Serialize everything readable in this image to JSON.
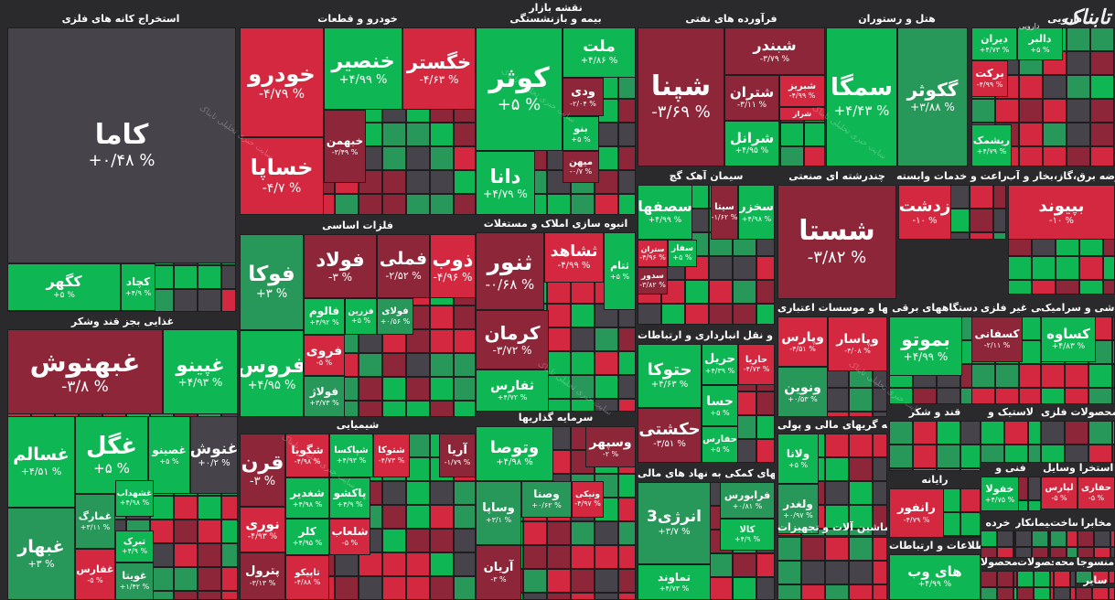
{
  "map_title": "نقشه بازار",
  "brand": {
    "logo": "تابناک",
    "sub": "دارویی"
  },
  "watermark": "سایت خبری تحلیلی تابناک",
  "colors": {
    "bg": "#2a2a2d",
    "neutral": "#46434b",
    "pos1": "#27985a",
    "pos2": "#0fb654",
    "neg1": "#8d2639",
    "neg2": "#d3283f"
  },
  "chart_data": {
    "type": "treemap",
    "sectors": [
      {
        "name": "استخراج کانه های فلزی",
        "stocks": [
          {
            "name": "کاما",
            "change": "+۰/۴۸ %"
          },
          {
            "name": "کگهر",
            "change": "+۵ %"
          },
          {
            "name": "کچاد",
            "change": "+۴/۹ %"
          }
        ]
      },
      {
        "name": "غذایی بجز قند وشکر",
        "stocks": [
          {
            "name": "غبهنوش",
            "change": "-۳/۸ %"
          },
          {
            "name": "غپینو",
            "change": "+۴/۹۳ %"
          },
          {
            "name": "غگل",
            "change": "+۵ %"
          },
          {
            "name": "غسالم",
            "change": "+۴/۵۱ %"
          },
          {
            "name": "غصینو",
            "change": "+۵ %"
          },
          {
            "name": "غنوش",
            "change": "+۰/۲ %"
          },
          {
            "name": "غمارگ",
            "change": "+۳/۱۱ %"
          },
          {
            "name": "غشهداب",
            "change": "+۴/۹۸ %"
          },
          {
            "name": "غبهار",
            "change": "+۳ %"
          },
          {
            "name": "تبرک",
            "change": "+۴/۹ %"
          },
          {
            "name": "غفارس",
            "change": "-۵ %"
          },
          {
            "name": "غویتا",
            "change": "+۱/۴۲ %"
          }
        ]
      },
      {
        "name": "خودرو و قطعات",
        "stocks": [
          {
            "name": "خودرو",
            "change": "-۴/۷۹ %"
          },
          {
            "name": "خنصیر",
            "change": "+۴/۹۹ %"
          },
          {
            "name": "خگستر",
            "change": "-۴/۶۳ %"
          },
          {
            "name": "خساپا",
            "change": "-۴/۷ %"
          },
          {
            "name": "خبهمن",
            "change": "-۳/۴۹ %"
          }
        ]
      },
      {
        "name": "فلزات اساسی",
        "stocks": [
          {
            "name": "فوکا",
            "change": "+۳ %"
          },
          {
            "name": "فولاد",
            "change": "-۳ %"
          },
          {
            "name": "فملی",
            "change": "-۲/۵۲ %"
          },
          {
            "name": "ذوب",
            "change": "-۴/۹۶ %"
          },
          {
            "name": "فالوم",
            "change": "+۴/۹۲ %"
          },
          {
            "name": "فزرین",
            "change": "+۵ %"
          },
          {
            "name": "فولای",
            "change": "+۰/۵۶ %"
          },
          {
            "name": "فروی",
            "change": "-۵ %"
          },
          {
            "name": "فروس",
            "change": "+۴/۹۵ %"
          },
          {
            "name": "فولاژ",
            "change": "+۳/۷۳ %"
          }
        ]
      },
      {
        "name": "شیمیایی",
        "stocks": [
          {
            "name": "قرن",
            "change": "-۳ %"
          },
          {
            "name": "شگویا",
            "change": "-۴/۹۸ %"
          },
          {
            "name": "شپاکسا",
            "change": "+۴/۹۳ %"
          },
          {
            "name": "شتوکا",
            "change": "-۴/۷۳ %"
          },
          {
            "name": "آریا",
            "change": "-۱/۷۹ %"
          },
          {
            "name": "پاکشو",
            "change": "+۴/۹ %"
          },
          {
            "name": "شغدیر",
            "change": "+۴/۹۸ %"
          },
          {
            "name": "شلعاب",
            "change": "-۵ %"
          },
          {
            "name": "نوری",
            "change": "-۴/۹۳ %"
          },
          {
            "name": "کلر",
            "change": "+۴/۹۵ %"
          },
          {
            "name": "پترول",
            "change": "-۳/۱۳ %"
          },
          {
            "name": "تاپیکو",
            "change": "-۴/۸۸ %"
          }
        ]
      },
      {
        "name": "بیمه و بازنشستگی",
        "stocks": [
          {
            "name": "کوثر",
            "change": "+۵ %"
          },
          {
            "name": "ملت",
            "change": "+۴/۸۶ %"
          },
          {
            "name": "ودی",
            "change": "-۲/۰۴ %"
          },
          {
            "name": "بنو",
            "change": "+۵ %"
          },
          {
            "name": "دانا",
            "change": "+۴/۷۹ %"
          },
          {
            "name": "میهن",
            "change": "-۰/۷ %"
          }
        ]
      },
      {
        "name": "انبوه سازی املاک و مستغلات",
        "stocks": [
          {
            "name": "ثنور",
            "change": "-۰/۶۸ %"
          },
          {
            "name": "ثشاهد",
            "change": "-۴/۹۹ %"
          },
          {
            "name": "ثتام",
            "change": "+۵ %"
          },
          {
            "name": "کرمان",
            "change": "-۳/۷۲ %"
          },
          {
            "name": "ثفارس",
            "change": "+۴/۷۲ %"
          }
        ]
      },
      {
        "name": "سرمایه گذاریها",
        "stocks": [
          {
            "name": "وتوصا",
            "change": "+۴/۹۸ %"
          },
          {
            "name": "وسپهر",
            "change": "-۲ %"
          },
          {
            "name": "وصنا",
            "change": "+۰/۶۲ %"
          },
          {
            "name": "ونیکی",
            "change": "-۴/۹۷ %"
          },
          {
            "name": "وساپا",
            "change": "+۳/۱ %"
          },
          {
            "name": "آریان",
            "change": "-۳ %"
          }
        ]
      },
      {
        "name": "فرآورده های نفتی",
        "stocks": [
          {
            "name": "شپنا",
            "change": "-۳/۶۹ %"
          },
          {
            "name": "شبندر",
            "change": "-۳/۷۹ %"
          },
          {
            "name": "شتران",
            "change": "-۳/۱۱ %"
          },
          {
            "name": "شبریز",
            "change": "-۴/۹۹ %"
          },
          {
            "name": "شراز",
            "change": "-۵ %"
          },
          {
            "name": "شرانل",
            "change": "+۴/۹۵ %"
          }
        ]
      },
      {
        "name": "سیمان آهک گچ",
        "stocks": [
          {
            "name": "سصفها",
            "change": "+۴/۹۹ %"
          },
          {
            "name": "سیتا",
            "change": "-۱/۶۲ %"
          },
          {
            "name": "سخزر",
            "change": "+۴/۹۸ %"
          },
          {
            "name": "سفار",
            "change": "+۵ %"
          },
          {
            "name": "ستران",
            "change": "-۴/۹۶ %"
          },
          {
            "name": "سدور",
            "change": "-۳/۸۲ %"
          }
        ]
      },
      {
        "name": "حمل و نقل انبارداری و ارتباطات",
        "stocks": [
          {
            "name": "حتوکا",
            "change": "+۴/۶۳ %"
          },
          {
            "name": "حریل",
            "change": "+۴/۳۹ %"
          },
          {
            "name": "حاریا",
            "change": "-۴/۷۳ %"
          },
          {
            "name": "حسا",
            "change": "+۵ %"
          },
          {
            "name": "حکشتی",
            "change": "-۳/۵۱ %"
          },
          {
            "name": "حفارس",
            "change": "+۵ %"
          }
        ]
      },
      {
        "name": "فعالیتهای کمکی به نهاد های مالی",
        "stocks": [
          {
            "name": "انرژی3",
            "change": "+۳/۷ %"
          },
          {
            "name": "فرابورس",
            "change": "+۰/۸۱ %"
          },
          {
            "name": "کالا",
            "change": "+۴/۹ %"
          },
          {
            "name": "تماوند",
            "change": "+۴/۷۳ %"
          }
        ]
      },
      {
        "name": "هتل و رستوران",
        "stocks": [
          {
            "name": "سمگا",
            "change": "+۴/۴۳ %"
          },
          {
            "name": "گکوثر",
            "change": "+۳/۸۸ %"
          }
        ]
      },
      {
        "name": "چندرشته ای صنعتی",
        "stocks": [
          {
            "name": "شستا",
            "change": "-۳/۸۲ %"
          }
        ]
      },
      {
        "name": "بانکها و موسسات اعتباری",
        "stocks": [
          {
            "name": "وپارس",
            "change": "-۴/۵۱ %"
          },
          {
            "name": "وپاسار",
            "change": "-۴/۰۸ %"
          },
          {
            "name": "ونوین",
            "change": "+۰/۵۳ %"
          }
        ]
      },
      {
        "name": "واسطه گریهای مالی و پولی",
        "stocks": [
          {
            "name": "ولانا",
            "change": "+۵ %"
          },
          {
            "name": "ولغدر",
            "change": "+۰/۹۷ %"
          }
        ]
      },
      {
        "name": "ماشین آلات و تجهیزات",
        "stocks": []
      },
      {
        "name": "زراعت و خدمات وابسته",
        "stocks": [
          {
            "name": "زدشت",
            "change": "-۱۰ %"
          }
        ]
      },
      {
        "name": "عرضه برق،گاز،بخار و آب",
        "stocks": [
          {
            "name": "بپیوند",
            "change": "-۱۰ %"
          }
        ]
      },
      {
        "name": "دارویی",
        "stocks": [
          {
            "name": "دیران",
            "change": "+۴/۷۳ %"
          },
          {
            "name": "برکت",
            "change": "-۴/۹۹ %"
          },
          {
            "name": "ریشمک",
            "change": "+۴/۷۹ %"
          },
          {
            "name": "دالبر",
            "change": "+۵ %"
          }
        ]
      },
      {
        "name": "دستگاههای برقی",
        "stocks": [
          {
            "name": "بموتو",
            "change": "+۴/۹۹ %"
          }
        ]
      },
      {
        "name": "کانی غیر فلزی",
        "stocks": [
          {
            "name": "کسفانی",
            "change": "-۲/۱۱ %"
          }
        ]
      },
      {
        "name": "کاشی و سرامیک",
        "stocks": [
          {
            "name": "کساوه",
            "change": "+۴/۸۳ %"
          }
        ]
      },
      {
        "name": "قند و شکر",
        "stocks": []
      },
      {
        "name": "لاستیک و",
        "stocks": []
      },
      {
        "name": "محصولات فلزی",
        "stocks": []
      },
      {
        "name": "رایانه",
        "stocks": [
          {
            "name": "رانفور",
            "change": "-۴/۷۹ %"
          }
        ]
      },
      {
        "name": "فنی و",
        "stocks": [
          {
            "name": "خفولا",
            "change": "+۴/۷۵ %"
          }
        ]
      },
      {
        "name": "وسایل",
        "stocks": [
          {
            "name": "لپارس",
            "change": "-۵ %"
          }
        ]
      },
      {
        "name": "استخرا",
        "stocks": [
          {
            "name": "حفاری",
            "change": "-۵ %"
          }
        ]
      },
      {
        "name": "خرده",
        "stocks": []
      },
      {
        "name": "بیمانکار",
        "stocks": []
      },
      {
        "name": "ساخت",
        "stocks": []
      },
      {
        "name": "مخابرا",
        "stocks": []
      },
      {
        "name": "اطلاعات و ارتباطات",
        "stocks": [
          {
            "name": "های وب",
            "change": "+۴/۹۹ %"
          }
        ]
      },
      {
        "name": "محصولا",
        "stocks": []
      },
      {
        "name": "محصولات",
        "stocks": []
      },
      {
        "name": "محه",
        "stocks": []
      },
      {
        "name": "منسوجا",
        "stocks": []
      },
      {
        "name": "سایر",
        "stocks": []
      }
    ]
  }
}
